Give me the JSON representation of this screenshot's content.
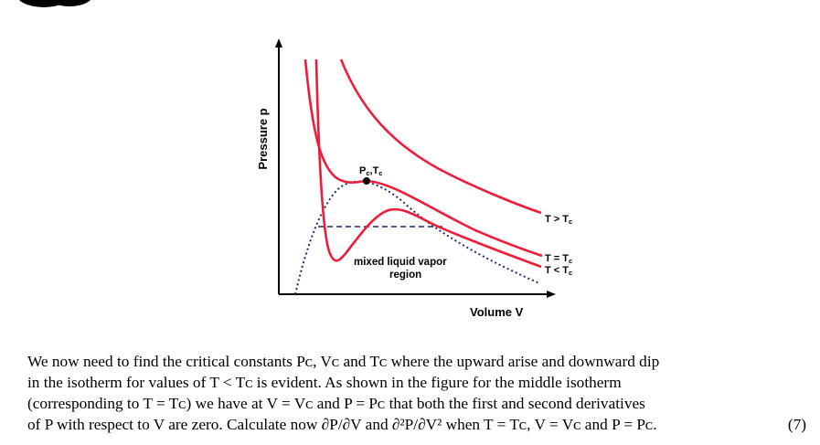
{
  "figure": {
    "y_axis_label": "Pressure p",
    "x_axis_label": "Volume V",
    "critical_point_label": "Pₑ,Tₑ",
    "critical_point_label_parts": [
      "P",
      "c",
      ",T",
      "c"
    ],
    "isotherm_labels": {
      "above": [
        "T > T",
        "c"
      ],
      "critical": [
        "T = T",
        "c"
      ],
      "below": [
        "T < T",
        "c"
      ]
    },
    "region_label_line1": "mixed liquid vapor",
    "region_label_line2": "region",
    "colors": {
      "isotherm": "#ee1c3a",
      "coexistence": "#1f2d6e",
      "axis": "#000000"
    }
  },
  "text": {
    "line1": "We now need to find the critical constants Pᴄ, Vᴄ and Tᴄ where the upward arise and downward dip",
    "line2": "in the isotherm for values of T < Tᴄ is evident. As shown in the figure for the middle isotherm",
    "line3": "(corresponding to T = Tᴄ) we have at V = Vᴄ and P = Pᴄ that both the first and second derivatives",
    "line4": "of P with respect to V are zero. Calculate now ∂P/∂V and ∂²P/∂V² when T = Tᴄ, V = Vᴄ and P = Pᴄ.",
    "equation_number": "(7)"
  }
}
